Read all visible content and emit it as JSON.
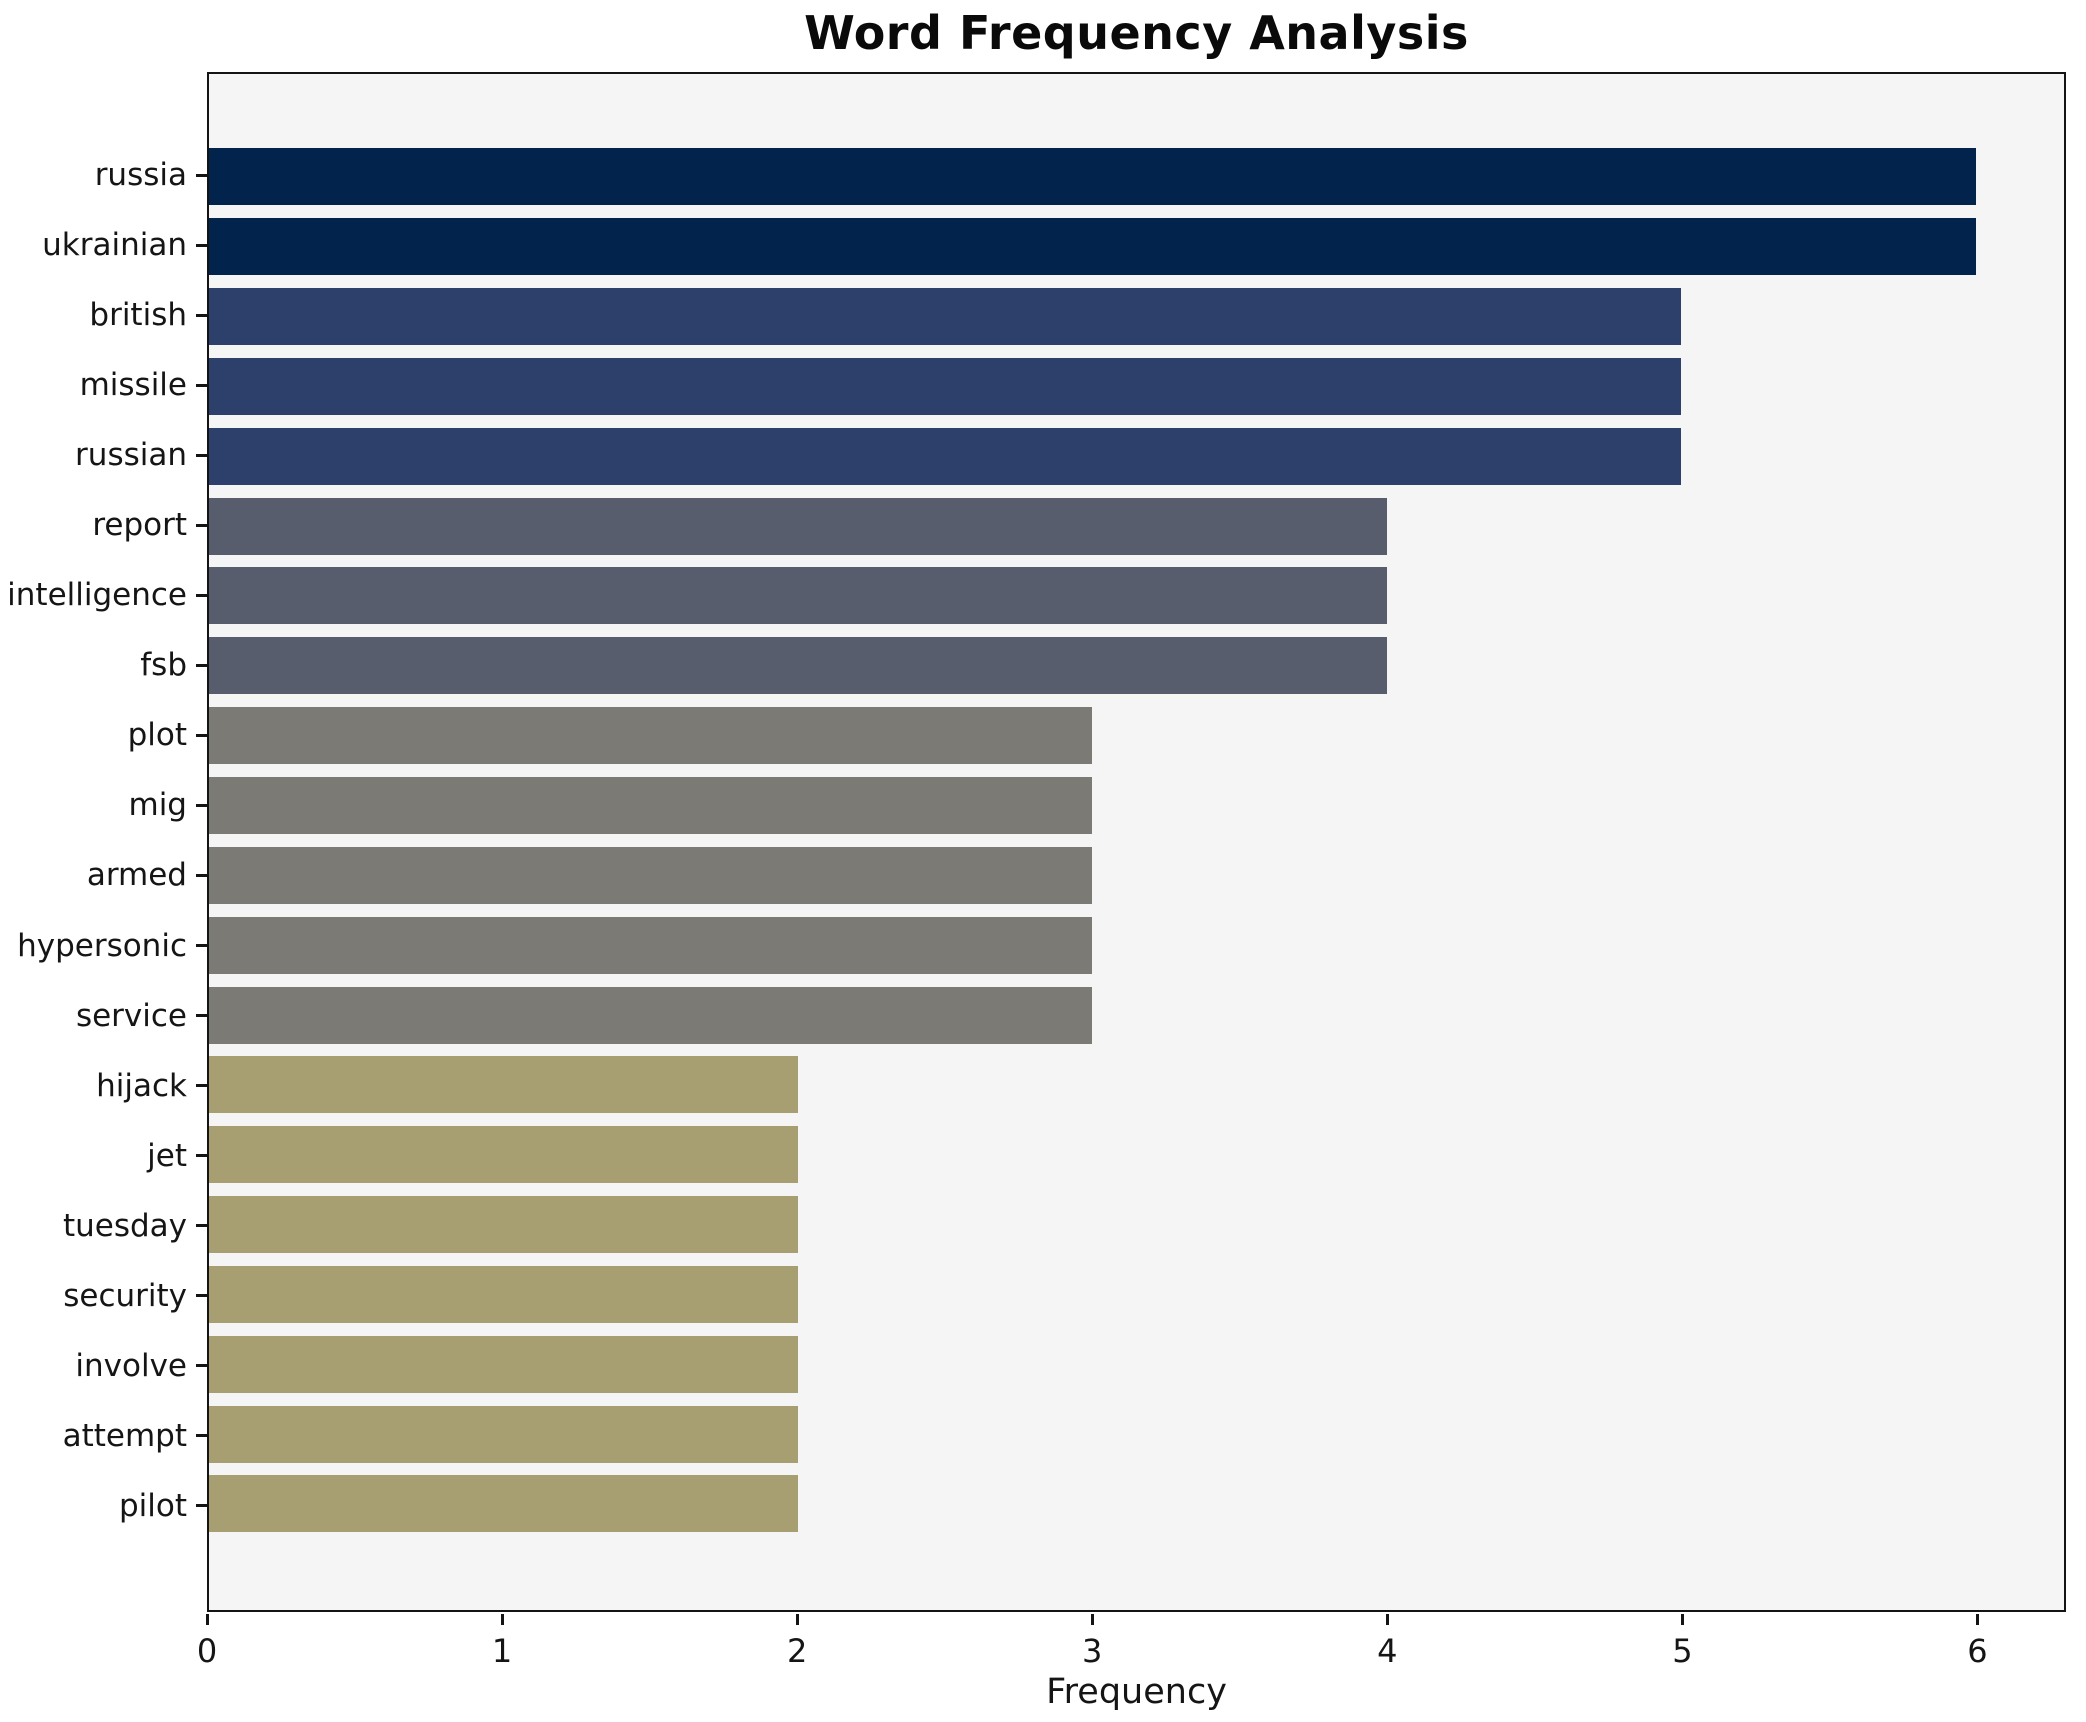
{
  "chart_data": {
    "type": "bar",
    "orientation": "horizontal",
    "title": "Word Frequency Analysis",
    "xlabel": "Frequency",
    "ylabel": "",
    "categories": [
      "russia",
      "ukrainian",
      "british",
      "missile",
      "russian",
      "report",
      "intelligence",
      "fsb",
      "plot",
      "mig",
      "armed",
      "hypersonic",
      "service",
      "hijack",
      "jet",
      "tuesday",
      "security",
      "involve",
      "attempt",
      "pilot"
    ],
    "values": [
      6,
      6,
      5,
      5,
      5,
      4,
      4,
      4,
      3,
      3,
      3,
      3,
      3,
      2,
      2,
      2,
      2,
      2,
      2,
      2
    ],
    "xticks": [
      0,
      1,
      2,
      3,
      4,
      5,
      6
    ],
    "xlim": [
      0,
      6.3
    ],
    "grid": false,
    "legend": null,
    "value_colors": {
      "6": "#02234c",
      "5": "#2d3f6b",
      "4": "#575d6c",
      "3": "#7b7a75",
      "2": "#a79e72"
    },
    "plot_background": "#f5f5f6",
    "figure_background": "#ffffff",
    "spine_color": "#141414"
  }
}
